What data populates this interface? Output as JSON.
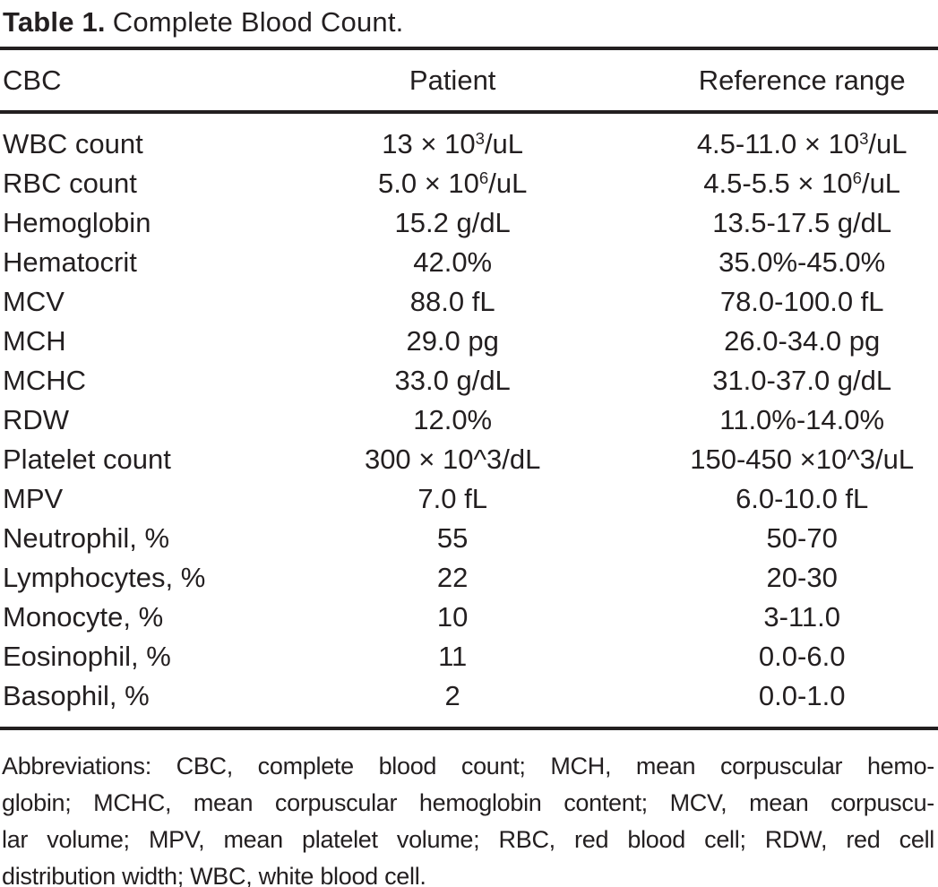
{
  "title": {
    "label": "Table 1.",
    "caption": "Complete Blood Count."
  },
  "table": {
    "columns": [
      {
        "label": "CBC"
      },
      {
        "label": "Patient"
      },
      {
        "label": "Reference range"
      }
    ],
    "rows": [
      {
        "name": "WBC count",
        "patient": [
          {
            "t": "13 × 10"
          },
          {
            "sup": "3"
          },
          {
            "t": "/uL"
          }
        ],
        "reference": [
          {
            "t": "4.5-11.0 × 10"
          },
          {
            "sup": "3"
          },
          {
            "t": "/uL"
          }
        ]
      },
      {
        "name": "RBC count",
        "patient": [
          {
            "t": "5.0 × 10"
          },
          {
            "sup": "6"
          },
          {
            "t": "/uL"
          }
        ],
        "reference": [
          {
            "t": "4.5-5.5 × 10"
          },
          {
            "sup": "6"
          },
          {
            "t": "/uL"
          }
        ]
      },
      {
        "name": "Hemoglobin",
        "patient": [
          {
            "t": "15.2 g/dL"
          }
        ],
        "reference": [
          {
            "t": "13.5-17.5 g/dL"
          }
        ]
      },
      {
        "name": "Hematocrit",
        "patient": [
          {
            "t": "42.0%"
          }
        ],
        "reference": [
          {
            "t": "35.0%-45.0%"
          }
        ]
      },
      {
        "name": "MCV",
        "patient": [
          {
            "t": "88.0 fL"
          }
        ],
        "reference": [
          {
            "t": "78.0-100.0 fL"
          }
        ]
      },
      {
        "name": "MCH",
        "patient": [
          {
            "t": "29.0 pg"
          }
        ],
        "reference": [
          {
            "t": "26.0-34.0 pg"
          }
        ]
      },
      {
        "name": "MCHC",
        "patient": [
          {
            "t": "33.0 g/dL"
          }
        ],
        "reference": [
          {
            "t": "31.0-37.0 g/dL"
          }
        ]
      },
      {
        "name": "RDW",
        "patient": [
          {
            "t": "12.0%"
          }
        ],
        "reference": [
          {
            "t": "11.0%-14.0%"
          }
        ]
      },
      {
        "name": "Platelet count",
        "patient": [
          {
            "t": "300 × 10^3/dL"
          }
        ],
        "reference": [
          {
            "t": "150-450 ×10^3/uL"
          }
        ]
      },
      {
        "name": "MPV",
        "patient": [
          {
            "t": "7.0 fL"
          }
        ],
        "reference": [
          {
            "t": "6.0-10.0 fL"
          }
        ]
      },
      {
        "name": "Neutrophil, %",
        "patient": [
          {
            "t": "55"
          }
        ],
        "reference": [
          {
            "t": "50-70"
          }
        ]
      },
      {
        "name": "Lymphocytes, %",
        "patient": [
          {
            "t": "22"
          }
        ],
        "reference": [
          {
            "t": "20-30"
          }
        ]
      },
      {
        "name": "Monocyte, %",
        "patient": [
          {
            "t": "10"
          }
        ],
        "reference": [
          {
            "t": "3-11.0"
          }
        ]
      },
      {
        "name": "Eosinophil, %",
        "patient": [
          {
            "t": "11"
          }
        ],
        "reference": [
          {
            "t": "0.0-6.0"
          }
        ]
      },
      {
        "name": "Basophil, %",
        "patient": [
          {
            "t": "2"
          }
        ],
        "reference": [
          {
            "t": "0.0-1.0"
          }
        ]
      }
    ]
  },
  "footnote": {
    "lines": [
      "Abbreviations: CBC, complete blood count; MCH, mean corpuscular hemo-",
      "globin; MCHC, mean corpuscular hemoglobin content; MCV, mean corpuscu-",
      "lar volume; MPV, mean platelet volume; RBC, red blood cell; RDW, red cell",
      "distribution width; WBC, white blood cell."
    ]
  },
  "colors": {
    "text": "#231f20",
    "rule": "#231f20",
    "background": "#ffffff"
  }
}
